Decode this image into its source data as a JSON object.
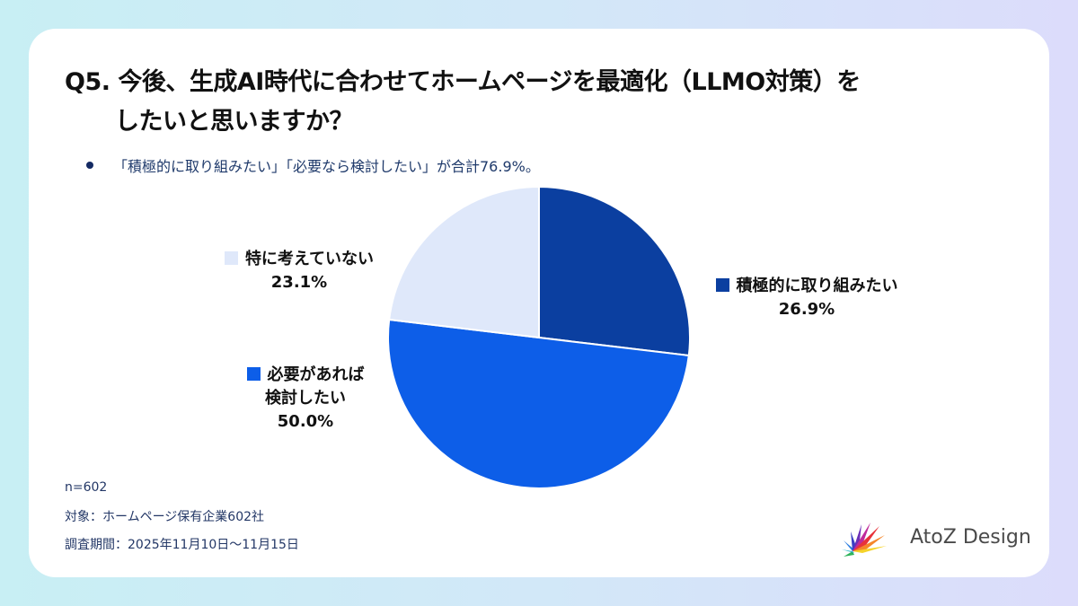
{
  "title": {
    "number": "Q5.",
    "line1": "今後、生成AI時代に合わせてホームページを最適化（LLMO対策）を",
    "line2": "したいと思いますか？"
  },
  "summary": "「積極的に取り組みたい」「必要なら検討したい」が合計76.9%。",
  "labels": {
    "active": {
      "name": "積極的に取り組みたい",
      "pct": "26.9%"
    },
    "consider_line1": "必要があれば",
    "consider_line2": "検討したい",
    "consider_pct": "50.0%",
    "none": {
      "name": "特に考えていない",
      "pct": "23.1%"
    }
  },
  "footer": {
    "n": "n=602",
    "target": "対象：ホームページ保有企業602社",
    "period": "調査期間：2025年11月10日〜11月15日"
  },
  "logo": {
    "text": "AtoZ Design"
  },
  "colors": {
    "active": "#0b3fa0",
    "consider": "#0d5ee8",
    "none": "#dfe8fa"
  },
  "chart_data": {
    "type": "pie",
    "title": "Q5. 今後、生成AI時代に合わせてホームページを最適化（LLMO対策）をしたいと思いますか？",
    "categories": [
      "積極的に取り組みたい",
      "必要があれば検討したい",
      "特に考えていない"
    ],
    "values": [
      26.9,
      50.0,
      23.1
    ],
    "colors": [
      "#0b3fa0",
      "#0d5ee8",
      "#dfe8fa"
    ],
    "start_angle": "12 o'clock, clockwise",
    "annotations": [
      "「積極的に取り組みたい」「必要なら検討したい」が合計76.9%。"
    ],
    "n": 602
  }
}
